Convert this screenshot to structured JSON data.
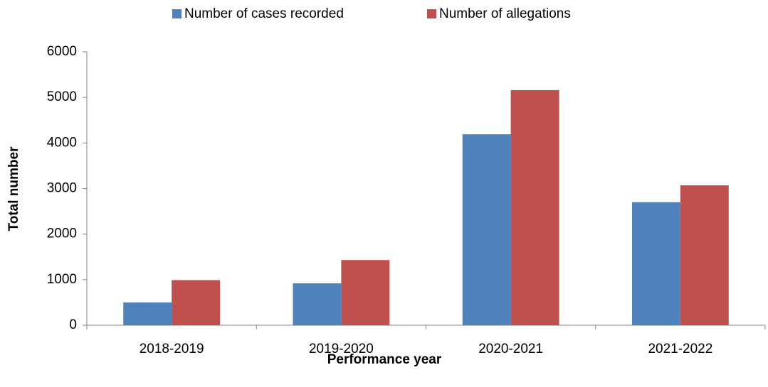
{
  "chart_data": {
    "type": "bar",
    "categories": [
      "2018-2019",
      "2019-2020",
      "2020-2021",
      "2021-2022"
    ],
    "series": [
      {
        "name": "Number of cases recorded",
        "color": "#4f81bd",
        "values": [
          500,
          920,
          4190,
          2700
        ]
      },
      {
        "name": "Number of allegations",
        "color": "#c0504d",
        "values": [
          990,
          1430,
          5160,
          3070
        ]
      }
    ],
    "ylim": [
      0,
      6000
    ],
    "yticks": [
      0,
      1000,
      2000,
      3000,
      4000,
      5000,
      6000
    ],
    "x_label": "Performance year",
    "y_label": "Total number",
    "legend": "top",
    "grid": false
  }
}
